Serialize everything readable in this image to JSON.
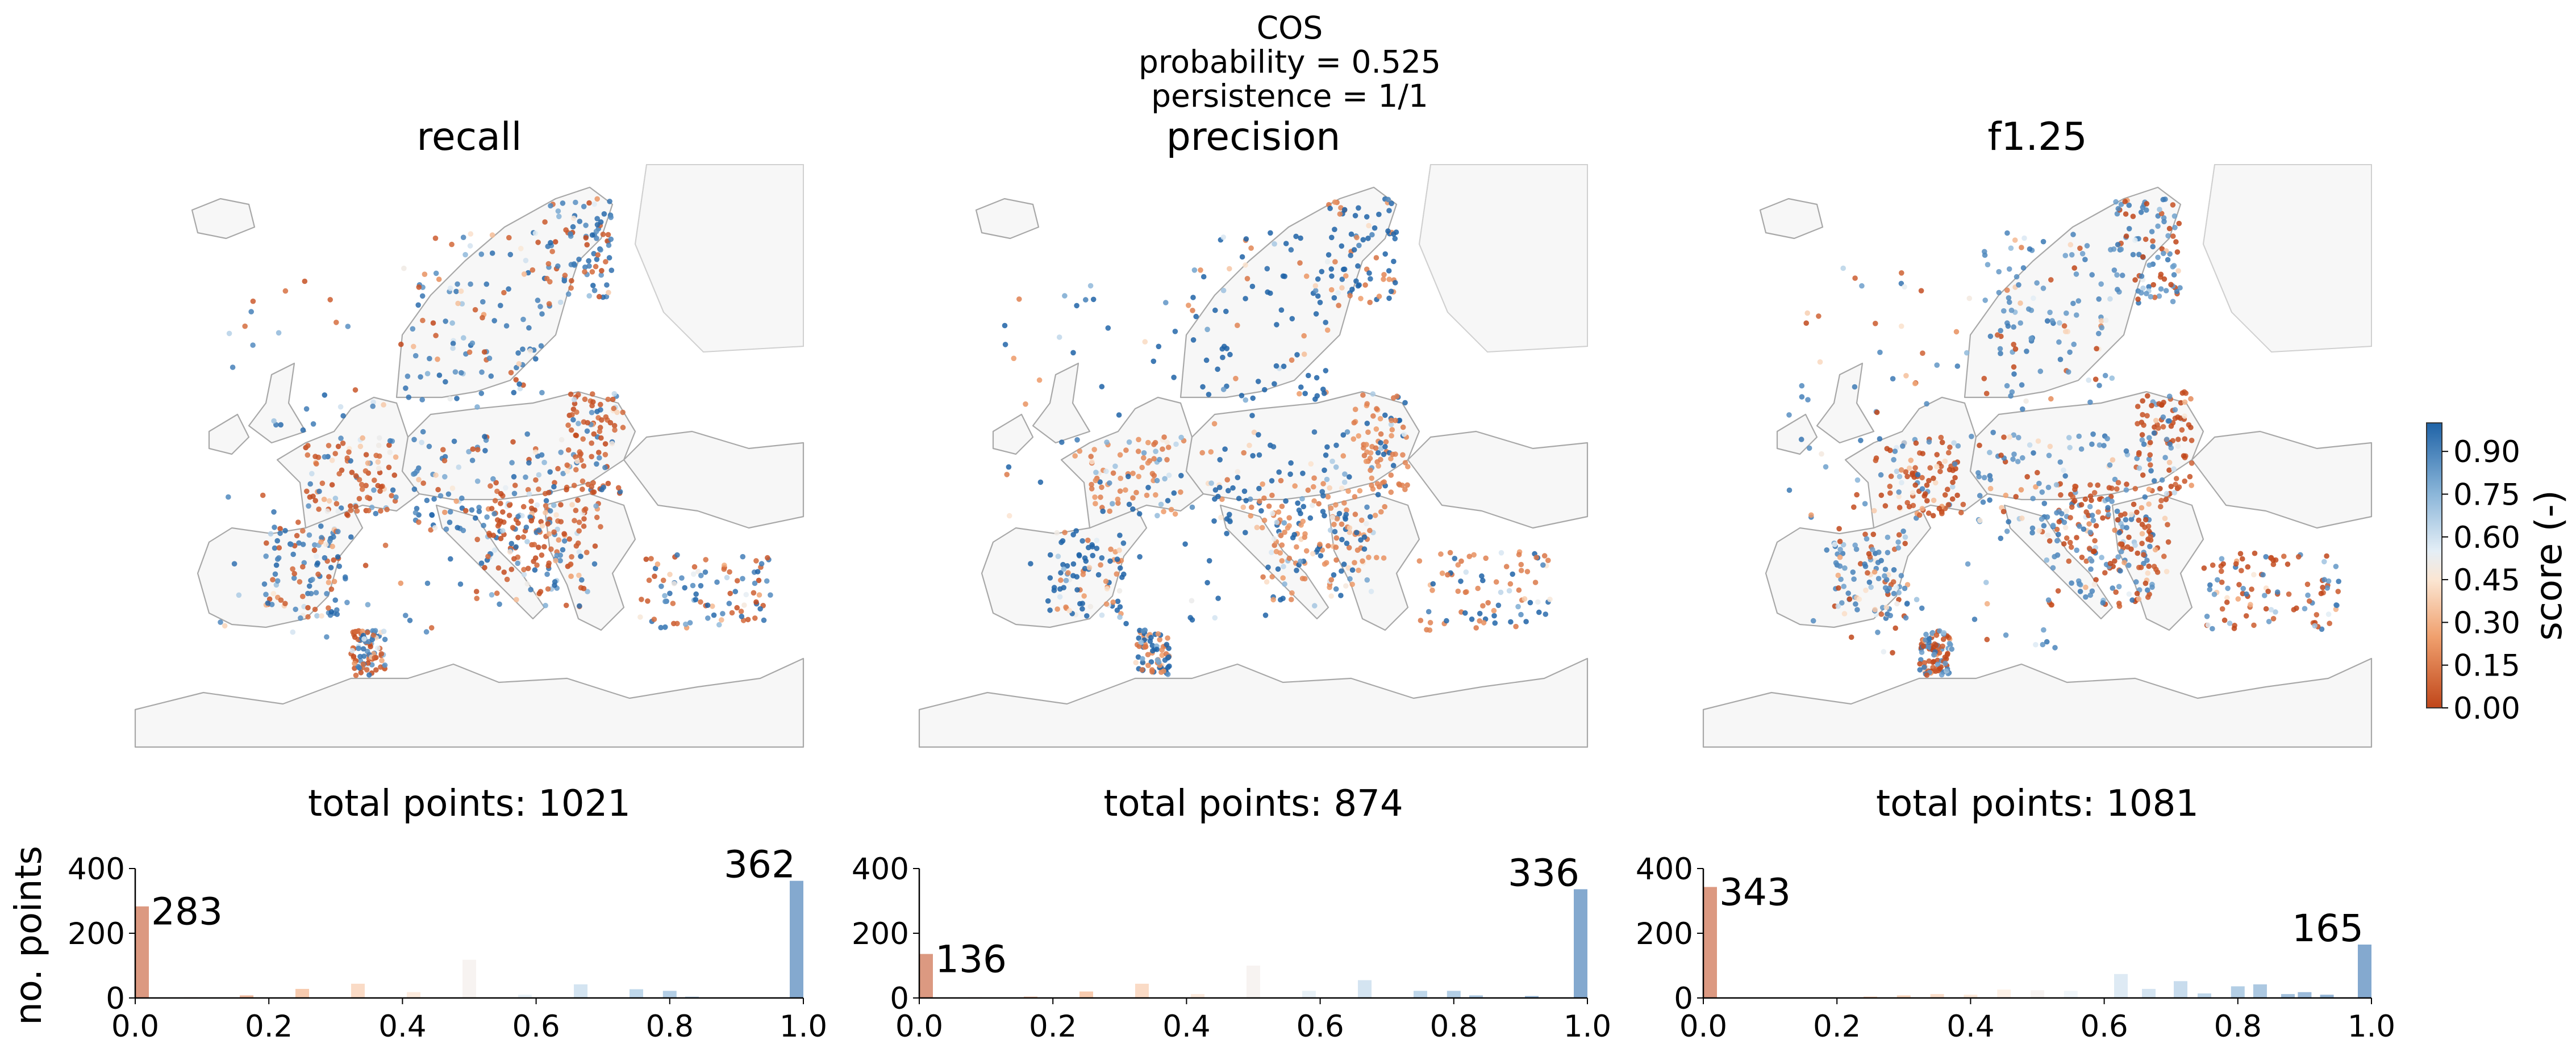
{
  "figure": {
    "suptitle_lines": [
      "COS",
      "probability = 0.525",
      "persistence = 1/1"
    ]
  },
  "colorbar": {
    "label": "score (-)",
    "ticks": [
      "0.00",
      "0.15",
      "0.30",
      "0.45",
      "0.60",
      "0.75",
      "0.90"
    ],
    "tick_values": [
      0.0,
      0.15,
      0.3,
      0.45,
      0.6,
      0.75,
      0.9
    ],
    "range": [
      0,
      1
    ]
  },
  "colors": {
    "low": "#c0461a",
    "mid": "#f7e8d8",
    "high": "#1f63a7",
    "land": "#f7f7f7",
    "coast": "#a8a8a8"
  },
  "chart_data": [
    {
      "type": "scatter",
      "title": "recall",
      "subtitle": "total points: 1021",
      "total_points": 1021,
      "description": "map of stations colored by recall score"
    },
    {
      "type": "scatter",
      "title": "precision",
      "subtitle": "total points: 874",
      "total_points": 874,
      "description": "map of stations colored by precision score"
    },
    {
      "type": "scatter",
      "title": "f1.25",
      "subtitle": "total points: 1081",
      "total_points": 1081,
      "description": "map of stations colored by f1.25 score"
    },
    {
      "type": "bar",
      "name": "recall histogram",
      "ylabel": "no. points",
      "xlim": [
        0,
        1
      ],
      "ylim": [
        0,
        400
      ],
      "xticks": [
        "0.0",
        "0.2",
        "0.4",
        "0.6",
        "0.8",
        "1.0"
      ],
      "yticks": [
        "0",
        "200",
        "400"
      ],
      "bins": [
        0.0,
        0.0833,
        0.1667,
        0.25,
        0.3333,
        0.4167,
        0.5,
        0.5833,
        0.6667,
        0.75,
        0.8,
        0.8333,
        1.0
      ],
      "values": [
        283,
        2,
        8,
        28,
        44,
        18,
        118,
        10,
        42,
        27,
        22,
        4,
        362
      ],
      "annotations": [
        {
          "x": 0.0,
          "label": "283"
        },
        {
          "x": 1.0,
          "label": "362"
        }
      ]
    },
    {
      "type": "bar",
      "name": "precision histogram",
      "ylabel": "",
      "xlim": [
        0,
        1
      ],
      "ylim": [
        0,
        400
      ],
      "xticks": [
        "0.0",
        "0.2",
        "0.4",
        "0.6",
        "0.8",
        "1.0"
      ],
      "yticks": [
        "0",
        "200",
        "400"
      ],
      "bins": [
        0.0,
        0.0833,
        0.1667,
        0.25,
        0.3333,
        0.4167,
        0.5,
        0.5833,
        0.6667,
        0.75,
        0.8,
        0.8333,
        0.9167,
        1.0
      ],
      "values": [
        136,
        2,
        4,
        20,
        44,
        12,
        100,
        22,
        55,
        22,
        22,
        8,
        6,
        336
      ],
      "annotations": [
        {
          "x": 0.0,
          "label": "136"
        },
        {
          "x": 1.0,
          "label": "336"
        }
      ]
    },
    {
      "type": "bar",
      "name": "f1.25 histogram",
      "ylabel": "",
      "xlim": [
        0,
        1
      ],
      "ylim": [
        0,
        400
      ],
      "xticks": [
        "0.0",
        "0.2",
        "0.4",
        "0.6",
        "0.8",
        "1.0"
      ],
      "yticks": [
        "0",
        "200",
        "400"
      ],
      "bins": [
        0.0,
        0.25,
        0.3,
        0.35,
        0.4,
        0.45,
        0.5,
        0.55,
        0.625,
        0.6667,
        0.7143,
        0.75,
        0.8,
        0.8333,
        0.875,
        0.9,
        0.9333,
        1.0
      ],
      "values": [
        343,
        4,
        8,
        12,
        10,
        26,
        24,
        22,
        74,
        28,
        52,
        14,
        36,
        42,
        12,
        18,
        10,
        165
      ],
      "annotations": [
        {
          "x": 0.0,
          "label": "343"
        },
        {
          "x": 1.0,
          "label": "165"
        }
      ]
    }
  ]
}
